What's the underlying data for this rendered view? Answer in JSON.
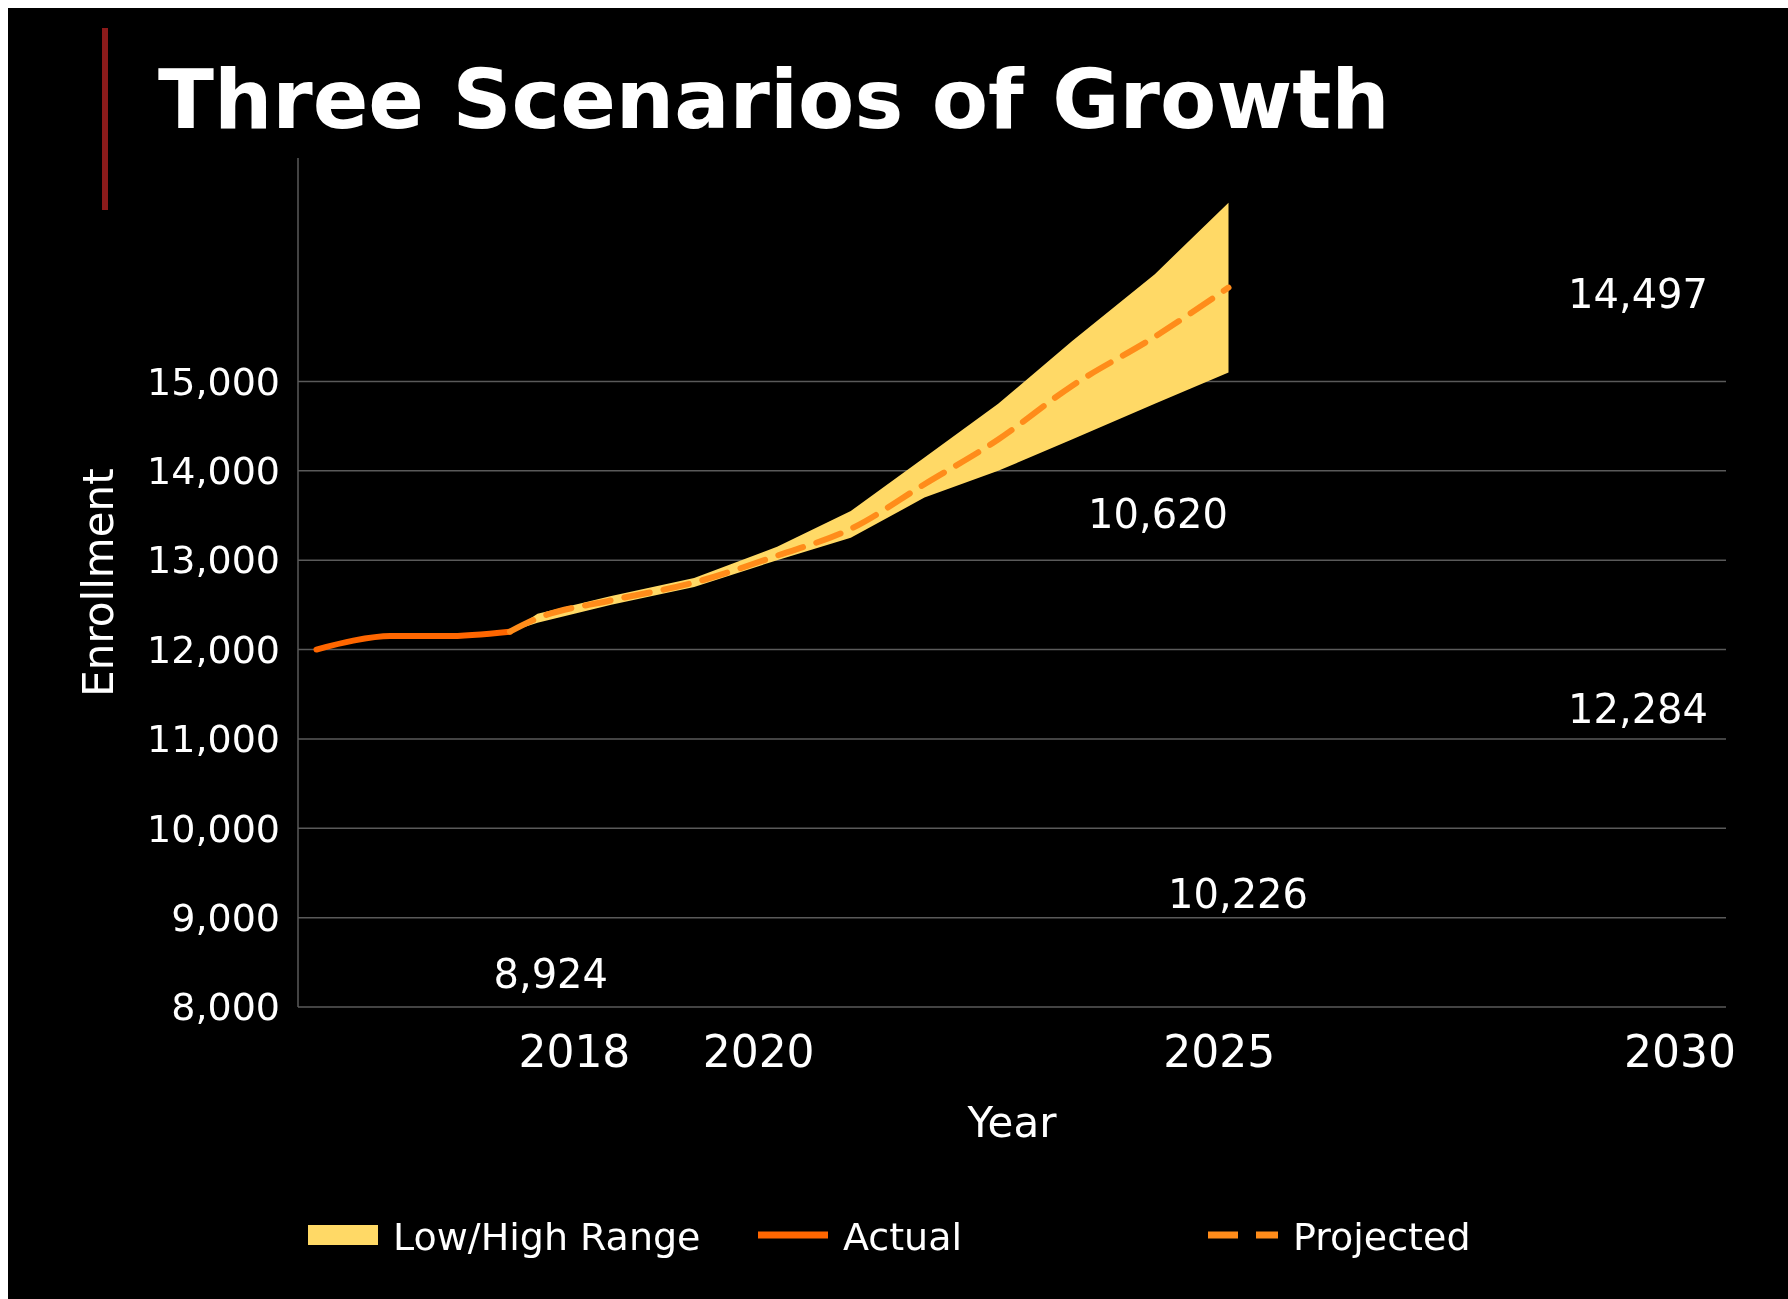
{
  "chart_data": {
    "type": "line",
    "title": "Three Scenarios of Growth",
    "xlabel": "Year",
    "ylabel": "Enrollment",
    "xlim": [
      2015,
      2030.5
    ],
    "xticks": [
      2018,
      2020,
      2025,
      2030
    ],
    "ylim": [
      8000,
      17500
    ],
    "yticks": [
      {
        "value": 8000,
        "label": "8,000"
      },
      {
        "value": 9000,
        "label": "9,000"
      },
      {
        "value": 10000,
        "label": "10,000"
      },
      {
        "value": 11000,
        "label": "11,000"
      },
      {
        "value": 12000,
        "label": "12,000"
      },
      {
        "value": 13000,
        "label": "13,000"
      },
      {
        "value": 14000,
        "label": "14,000"
      },
      {
        "value": 15000,
        "label": "15,000"
      }
    ],
    "grid": "y",
    "legend": "bottom",
    "series": [
      {
        "name": "Low/High Range",
        "type": "area",
        "color": "#ffd966"
      },
      {
        "name": "Actual",
        "type": "line",
        "color": "#ff6600",
        "line_style": "solid",
        "x": [
          2015.2,
          2015.6,
          2016,
          2016.6,
          2017.3
        ],
        "values": [
          12000,
          12100,
          12150,
          12150,
          12200
        ]
      },
      {
        "name": "Projected",
        "type": "line",
        "color": "#ff8c1a",
        "line_style": "dashed",
        "x": [
          2017.3,
          2017.6,
          2018.4,
          2019.3,
          2020.2,
          2021,
          2021.8,
          2022.6,
          2023.4,
          2024.3,
          2025.1
        ],
        "values": [
          12200,
          12350,
          12550,
          12750,
          13050,
          13350,
          13850,
          14350,
          14950,
          15500,
          16050
        ],
        "lower": [
          12200,
          12300,
          12500,
          12700,
          13000,
          13250,
          13700,
          14000,
          14350,
          14750,
          15100
        ],
        "upper": [
          12200,
          12400,
          12600,
          12800,
          13150,
          13550,
          14150,
          14750,
          15450,
          16200,
          17000
        ]
      }
    ],
    "annotations": [
      "14,497",
      "12,284",
      "10,620",
      "10,226",
      "8,924"
    ]
  }
}
